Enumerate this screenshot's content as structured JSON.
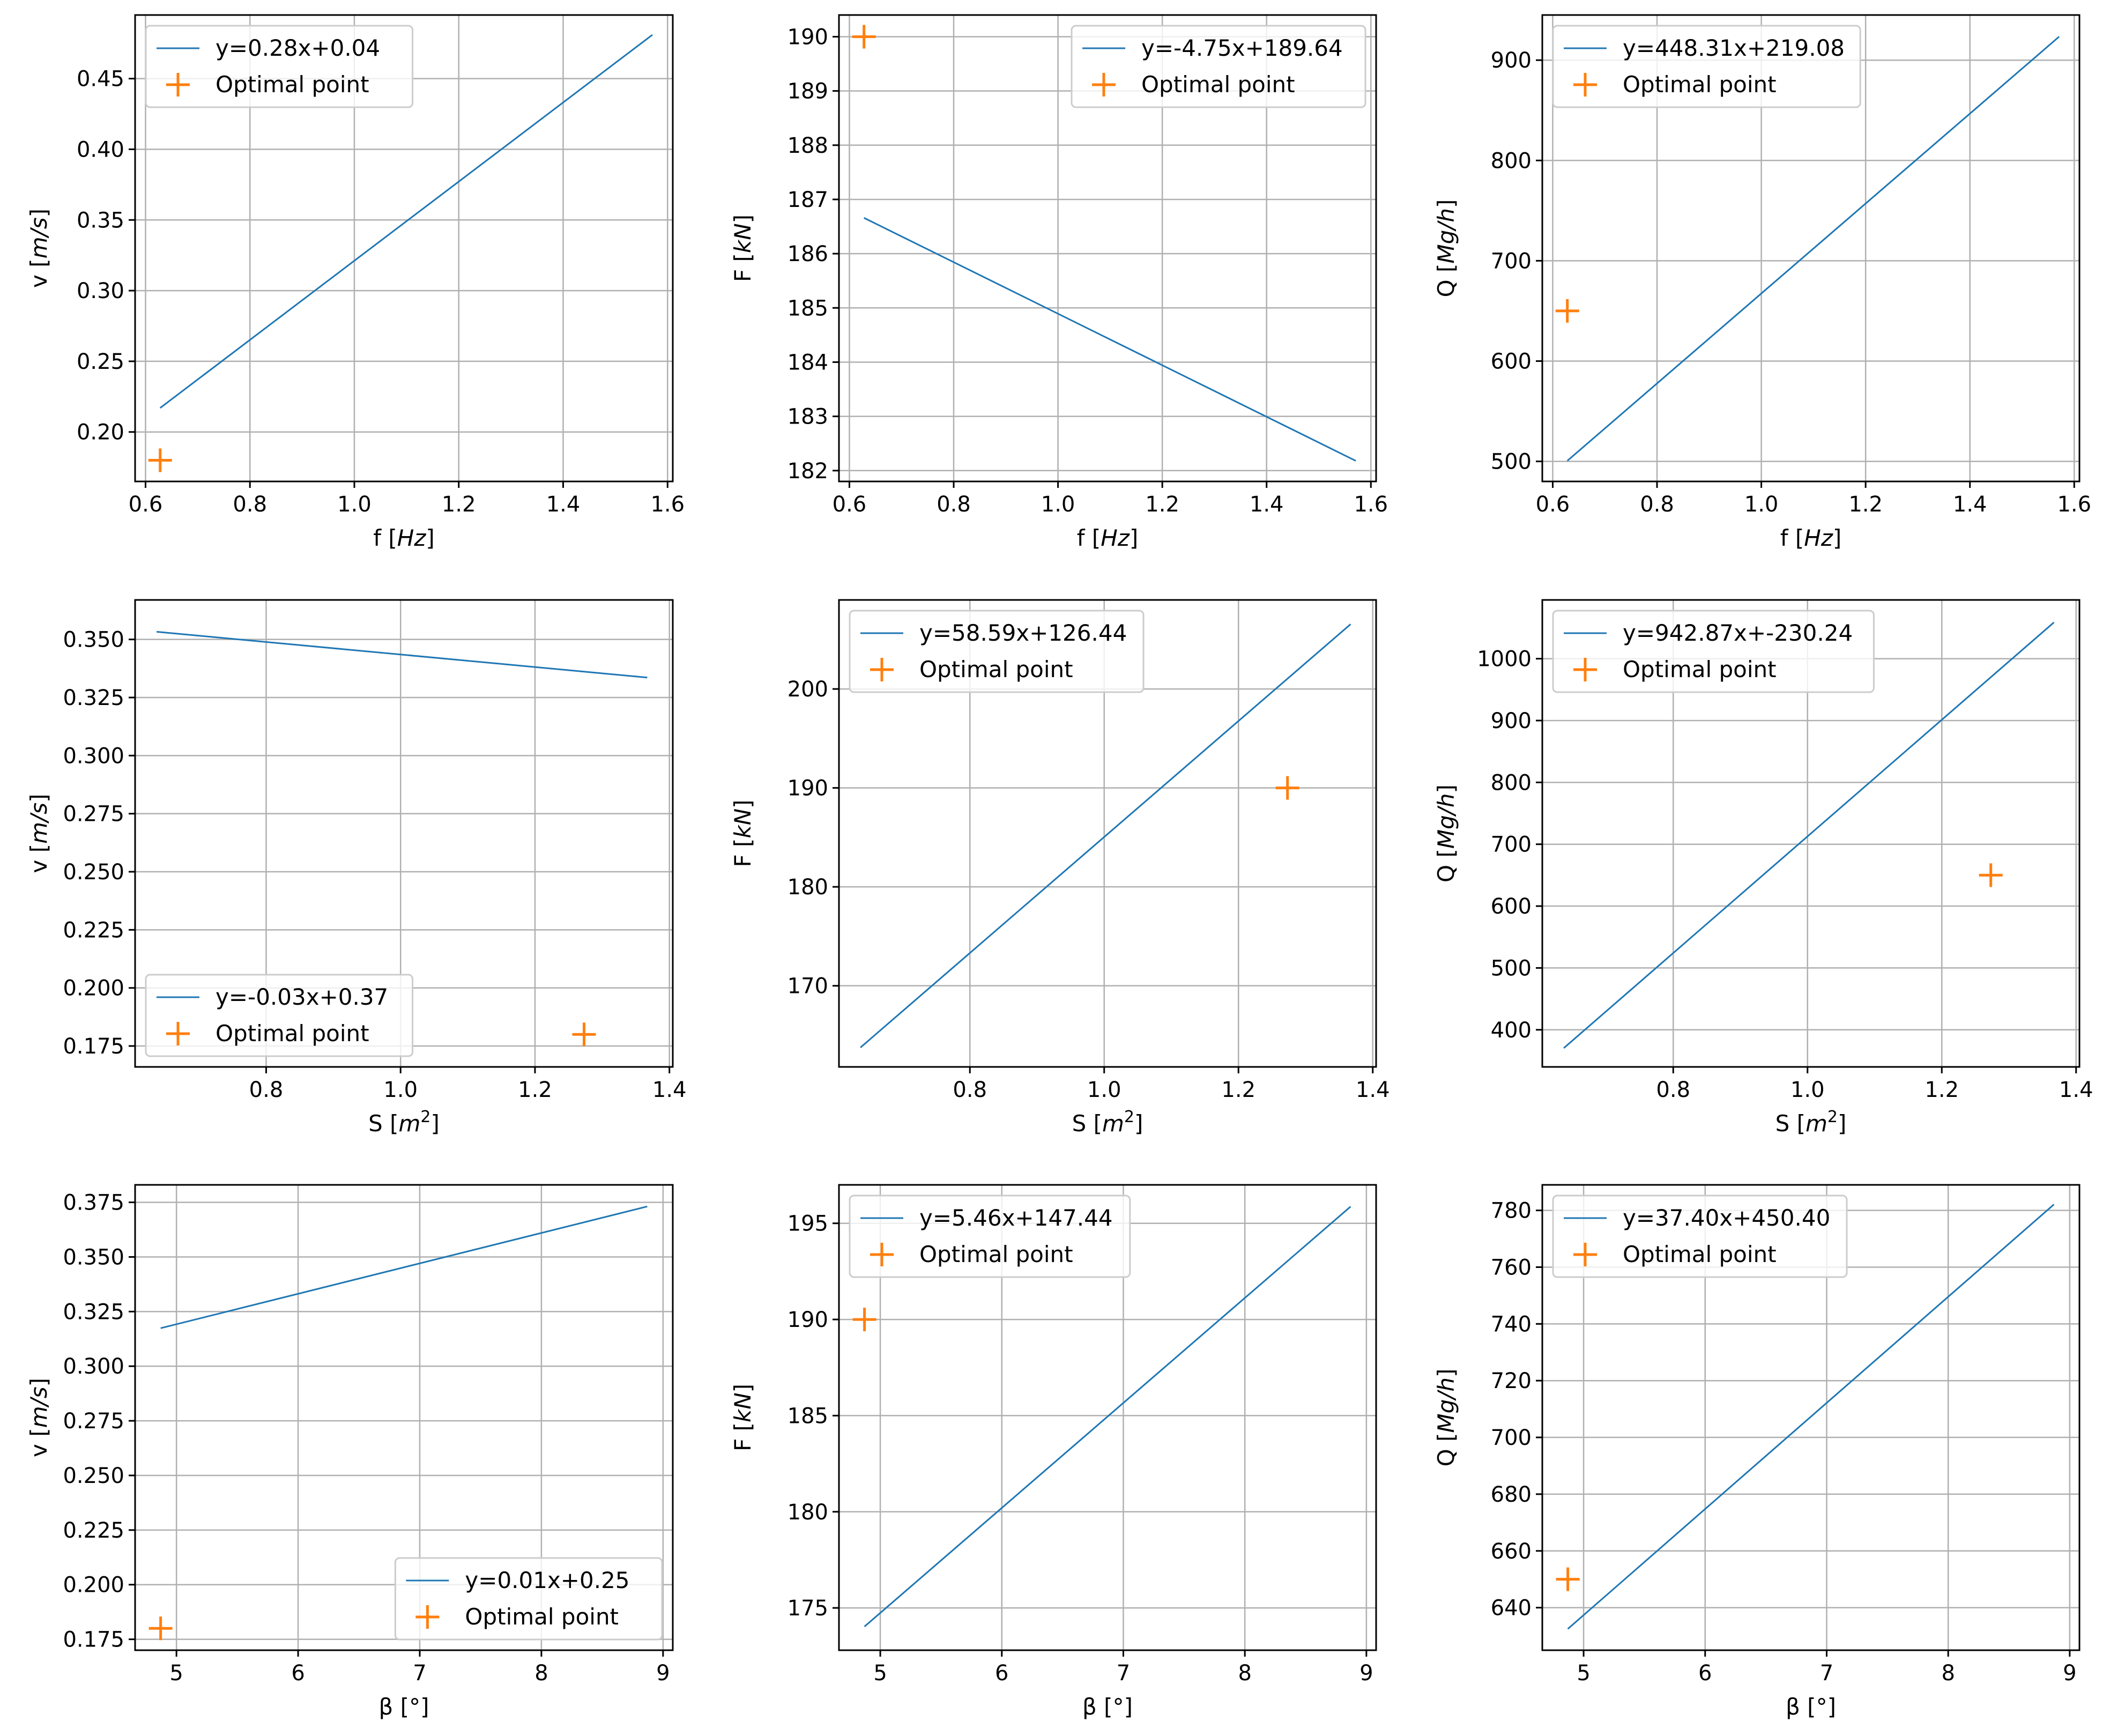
{
  "colors": {
    "line": "#1f77b4",
    "marker": "#ff7f0e"
  },
  "chart_data": [
    {
      "type": "line",
      "xlabel": "f [Hz]",
      "xlabel_plain": "f [",
      "xlabel_italic": "Hz",
      "xlabel_tail": "]",
      "ylabel_plain": "v [",
      "ylabel_italic": "m/s",
      "ylabel_tail": "]",
      "xlim": [
        0.58,
        1.61
      ],
      "ylim": [
        0.165,
        0.495
      ],
      "xticks": [
        0.6,
        0.8,
        1.0,
        1.2,
        1.4,
        1.6
      ],
      "xtick_labels": [
        "0.6",
        "0.8",
        "1.0",
        "1.2",
        "1.4",
        "1.6"
      ],
      "yticks": [
        0.2,
        0.25,
        0.3,
        0.35,
        0.4,
        0.45
      ],
      "ytick_labels": [
        "0.20",
        "0.25",
        "0.30",
        "0.35",
        "0.40",
        "0.45"
      ],
      "series": [
        {
          "name": "y=0.28x+0.04",
          "x": [
            0.628,
            1.571
          ],
          "y": [
            0.217,
            0.481
          ]
        },
        {
          "name": "Optimal point",
          "marker": "+",
          "x": [
            0.628
          ],
          "y": [
            0.18
          ]
        }
      ],
      "legend": "upper-left"
    },
    {
      "type": "line",
      "xlim": [
        0.58,
        1.61
      ],
      "ylim": [
        181.8,
        190.4
      ],
      "xlabel_plain": "f [",
      "xlabel_italic": "Hz",
      "xlabel_tail": "]",
      "ylabel_plain": "F [",
      "ylabel_italic": "kN",
      "ylabel_tail": "]",
      "xticks": [
        0.6,
        0.8,
        1.0,
        1.2,
        1.4,
        1.6
      ],
      "xtick_labels": [
        "0.6",
        "0.8",
        "1.0",
        "1.2",
        "1.4",
        "1.6"
      ],
      "yticks": [
        182,
        183,
        184,
        185,
        186,
        187,
        188,
        189,
        190
      ],
      "ytick_labels": [
        "182",
        "183",
        "184",
        "185",
        "186",
        "187",
        "188",
        "189",
        "190"
      ],
      "series": [
        {
          "name": "y=-4.75x+189.64",
          "x": [
            0.628,
            1.571
          ],
          "y": [
            186.66,
            182.18
          ]
        },
        {
          "name": "Optimal point",
          "marker": "+",
          "x": [
            0.628
          ],
          "y": [
            190.0
          ]
        }
      ],
      "legend": "upper-right"
    },
    {
      "type": "line",
      "xlim": [
        0.58,
        1.61
      ],
      "ylim": [
        480,
        945
      ],
      "xlabel_plain": "f [",
      "xlabel_italic": "Hz",
      "xlabel_tail": "]",
      "ylabel_plain": "Q [",
      "ylabel_italic": "Mg/h",
      "ylabel_tail": "]",
      "xticks": [
        0.6,
        0.8,
        1.0,
        1.2,
        1.4,
        1.6
      ],
      "xtick_labels": [
        "0.6",
        "0.8",
        "1.0",
        "1.2",
        "1.4",
        "1.6"
      ],
      "yticks": [
        500,
        600,
        700,
        800,
        900
      ],
      "ytick_labels": [
        "500",
        "600",
        "700",
        "800",
        "900"
      ],
      "series": [
        {
          "name": "y=448.31x+219.08",
          "x": [
            0.628,
            1.571
          ],
          "y": [
            500.6,
            923.4
          ]
        },
        {
          "name": "Optimal point",
          "marker": "+",
          "x": [
            0.628
          ],
          "y": [
            650
          ]
        }
      ],
      "legend": "upper-left"
    },
    {
      "type": "line",
      "xlim": [
        0.605,
        1.405
      ],
      "ylim": [
        0.166,
        0.367
      ],
      "xlabel_plain": "S [",
      "xlabel_italic": "m",
      "xlabel_sup": "2",
      "xlabel_tail": "]",
      "ylabel_plain": "v [",
      "ylabel_italic": "m/s",
      "ylabel_tail": "]",
      "xticks": [
        0.8,
        1.0,
        1.2,
        1.4
      ],
      "xtick_labels": [
        "0.8",
        "1.0",
        "1.2",
        "1.4"
      ],
      "yticks": [
        0.175,
        0.2,
        0.225,
        0.25,
        0.275,
        0.3,
        0.325,
        0.35
      ],
      "ytick_labels": [
        "0.175",
        "0.200",
        "0.225",
        "0.250",
        "0.275",
        "0.300",
        "0.325",
        "0.350"
      ],
      "series": [
        {
          "name": "y=-0.03x+0.37",
          "x": [
            0.637,
            1.367
          ],
          "y": [
            0.3533,
            0.3336
          ]
        },
        {
          "name": "Optimal point",
          "marker": "+",
          "x": [
            1.273
          ],
          "y": [
            0.18
          ]
        }
      ],
      "legend": "lower-left"
    },
    {
      "type": "line",
      "xlim": [
        0.605,
        1.405
      ],
      "ylim": [
        161.8,
        209.0
      ],
      "xlabel_plain": "S [",
      "xlabel_italic": "m",
      "xlabel_sup": "2",
      "xlabel_tail": "]",
      "ylabel_plain": "F [",
      "ylabel_italic": "kN",
      "ylabel_tail": "]",
      "xticks": [
        0.8,
        1.0,
        1.2,
        1.4
      ],
      "xtick_labels": [
        "0.8",
        "1.0",
        "1.2",
        "1.4"
      ],
      "yticks": [
        170,
        180,
        190,
        200
      ],
      "ytick_labels": [
        "170",
        "180",
        "190",
        "200"
      ],
      "series": [
        {
          "name": "y=58.59x+126.44",
          "x": [
            0.637,
            1.367
          ],
          "y": [
            163.76,
            206.55
          ]
        },
        {
          "name": "Optimal point",
          "marker": "+",
          "x": [
            1.273
          ],
          "y": [
            190
          ]
        }
      ],
      "legend": "upper-left"
    },
    {
      "type": "line",
      "xlim": [
        0.605,
        1.405
      ],
      "ylim": [
        340,
        1095
      ],
      "xlabel_plain": "S [",
      "xlabel_italic": "m",
      "xlabel_sup": "2",
      "xlabel_tail": "]",
      "ylabel_plain": "Q [",
      "ylabel_italic": "Mg/h",
      "ylabel_tail": "]",
      "xticks": [
        0.8,
        1.0,
        1.2,
        1.4
      ],
      "xtick_labels": [
        "0.8",
        "1.0",
        "1.2",
        "1.4"
      ],
      "yticks": [
        400,
        500,
        600,
        700,
        800,
        900,
        1000
      ],
      "ytick_labels": [
        "400",
        "500",
        "600",
        "700",
        "800",
        "900",
        "1000"
      ],
      "series": [
        {
          "name": "y=942.87x+-230.24",
          "x": [
            0.637,
            1.367
          ],
          "y": [
            370.4,
            1058.7
          ]
        },
        {
          "name": "Optimal point",
          "marker": "+",
          "x": [
            1.273
          ],
          "y": [
            650
          ]
        }
      ],
      "legend": "upper-left"
    },
    {
      "type": "line",
      "xlim": [
        4.66,
        9.08
      ],
      "ylim": [
        0.17,
        0.383
      ],
      "xlabel_plain": "β [°]",
      "ylabel_plain": "v [",
      "ylabel_italic": "m/s",
      "ylabel_tail": "]",
      "xticks": [
        5,
        6,
        7,
        8,
        9
      ],
      "xtick_labels": [
        "5",
        "6",
        "7",
        "8",
        "9"
      ],
      "yticks": [
        0.175,
        0.2,
        0.225,
        0.25,
        0.275,
        0.3,
        0.325,
        0.35,
        0.375
      ],
      "ytick_labels": [
        "0.175",
        "0.200",
        "0.225",
        "0.250",
        "0.275",
        "0.300",
        "0.325",
        "0.350",
        "0.375"
      ],
      "series": [
        {
          "name": "y=0.01x+0.25",
          "x": [
            4.87,
            8.87
          ],
          "y": [
            0.3174,
            0.3731
          ]
        },
        {
          "name": "Optimal point",
          "marker": "+",
          "x": [
            4.87
          ],
          "y": [
            0.18
          ]
        }
      ],
      "legend": "lower-right"
    },
    {
      "type": "line",
      "xlim": [
        4.66,
        9.08
      ],
      "ylim": [
        172.8,
        197.0
      ],
      "xlabel_plain": "β [°]",
      "ylabel_plain": "F [",
      "ylabel_italic": "kN",
      "ylabel_tail": "]",
      "xticks": [
        5,
        6,
        7,
        8,
        9
      ],
      "xtick_labels": [
        "5",
        "6",
        "7",
        "8",
        "9"
      ],
      "yticks": [
        175,
        180,
        185,
        190,
        195
      ],
      "ytick_labels": [
        "175",
        "180",
        "185",
        "190",
        "195"
      ],
      "series": [
        {
          "name": "y=5.46x+147.44",
          "x": [
            4.87,
            8.87
          ],
          "y": [
            174.03,
            195.87
          ]
        },
        {
          "name": "Optimal point",
          "marker": "+",
          "x": [
            4.87
          ],
          "y": [
            190
          ]
        }
      ],
      "legend": "upper-left"
    },
    {
      "type": "line",
      "xlim": [
        4.66,
        9.08
      ],
      "ylim": [
        625,
        789
      ],
      "xlabel_plain": "β [°]",
      "ylabel_plain": "Q [",
      "ylabel_italic": "Mg/h",
      "ylabel_tail": "]",
      "xticks": [
        5,
        6,
        7,
        8,
        9
      ],
      "xtick_labels": [
        "5",
        "6",
        "7",
        "8",
        "9"
      ],
      "yticks": [
        640,
        660,
        680,
        700,
        720,
        740,
        760,
        780
      ],
      "ytick_labels": [
        "640",
        "660",
        "680",
        "700",
        "720",
        "740",
        "760",
        "780"
      ],
      "series": [
        {
          "name": "y=37.40x+450.40",
          "x": [
            4.87,
            8.87
          ],
          "y": [
            632.5,
            782.1
          ]
        },
        {
          "name": "Optimal point",
          "marker": "+",
          "x": [
            4.87
          ],
          "y": [
            650
          ]
        }
      ],
      "legend": "upper-left"
    }
  ]
}
